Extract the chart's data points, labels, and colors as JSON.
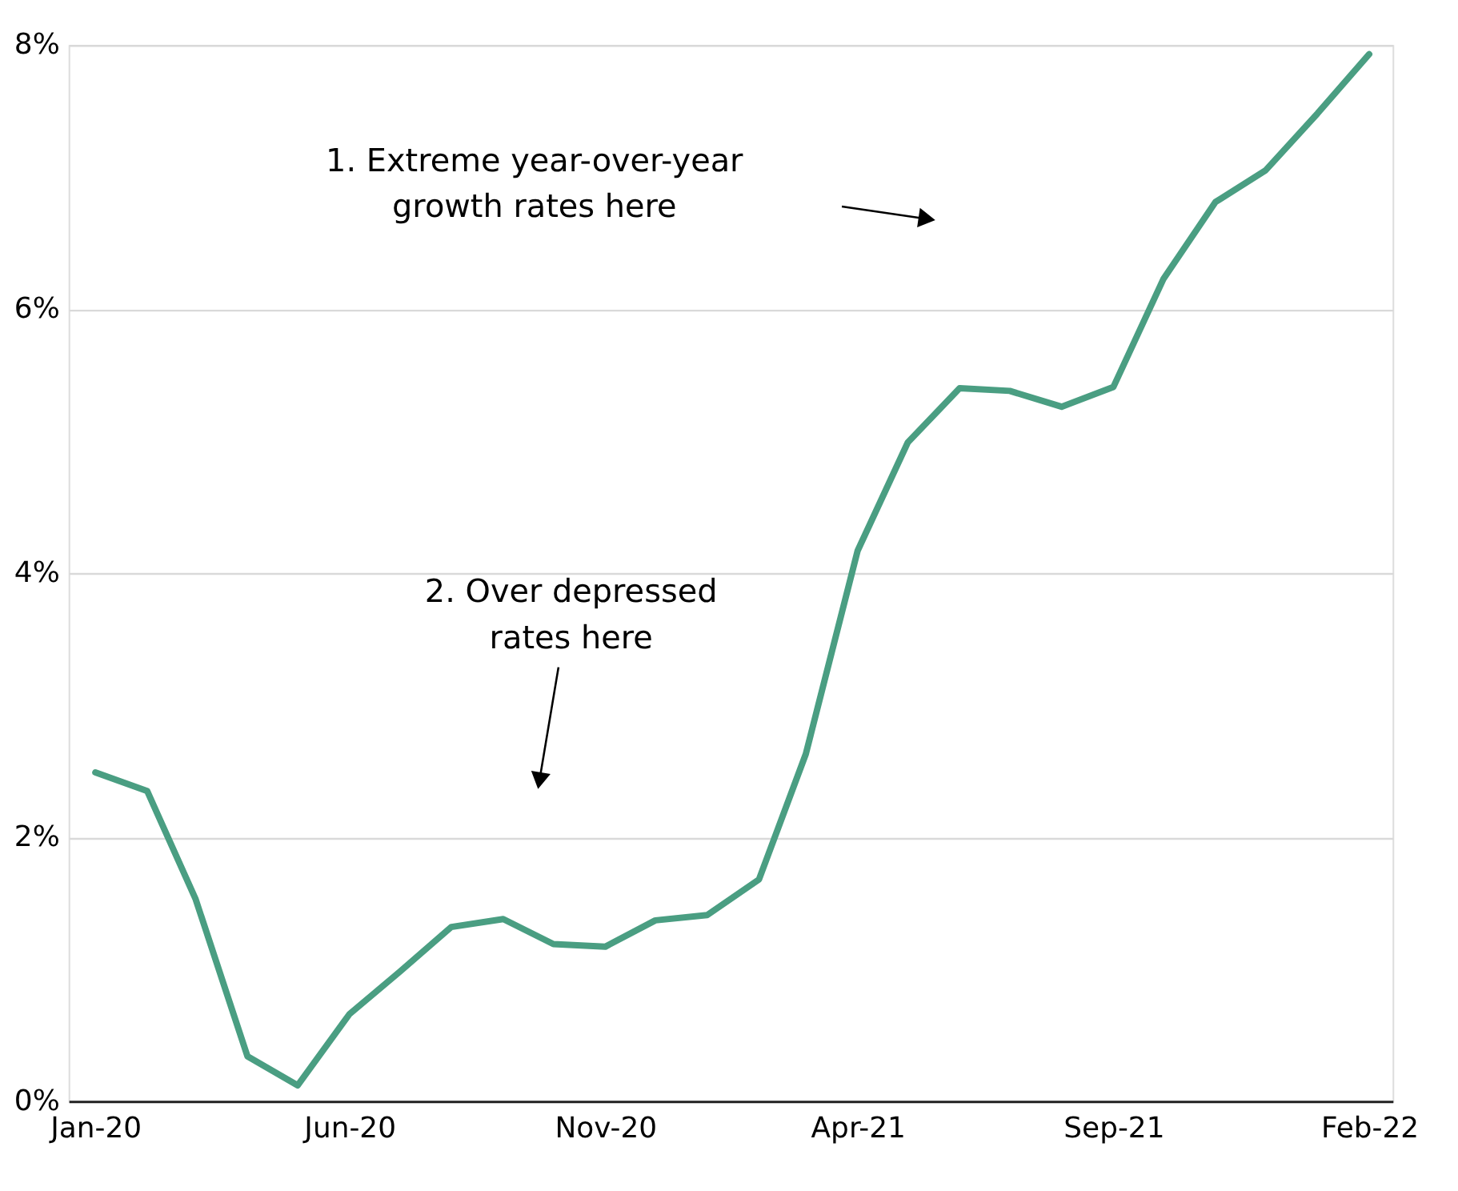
{
  "chart_data": {
    "type": "line",
    "x": [
      "2020-01",
      "2020-02",
      "2020-03",
      "2020-04",
      "2020-05",
      "2020-06",
      "2020-07",
      "2020-08",
      "2020-09",
      "2020-10",
      "2020-11",
      "2020-12",
      "2021-01",
      "2021-02",
      "2021-03",
      "2021-04",
      "2021-05",
      "2021-06",
      "2021-07",
      "2021-08",
      "2021-09",
      "2021-10",
      "2021-11",
      "2021-12",
      "2022-01",
      "2022-02"
    ],
    "series": [
      {
        "color": "#4a9e82",
        "values": [
          2.49,
          2.35,
          1.53,
          0.34,
          0.12,
          0.66,
          0.98,
          1.32,
          1.38,
          1.19,
          1.17,
          1.37,
          1.41,
          1.68,
          2.63,
          4.17,
          4.99,
          5.4,
          5.38,
          5.26,
          5.41,
          6.23,
          6.81,
          7.05,
          7.48,
          7.93
        ]
      }
    ],
    "xlim": [
      "2019-12-16",
      "2022-02-15"
    ],
    "xticks": [
      {
        "value": "2020-01",
        "label": "Jan-20"
      },
      {
        "value": "2020-06",
        "label": "Jun-20"
      },
      {
        "value": "2020-11",
        "label": "Nov-20"
      },
      {
        "value": "2021-04",
        "label": "Apr-21"
      },
      {
        "value": "2021-09",
        "label": "Sep-21"
      },
      {
        "value": "2022-02",
        "label": "Feb-22"
      }
    ],
    "ylim": [
      0,
      8
    ],
    "yticks": [
      {
        "value": 0,
        "label": "0%"
      },
      {
        "value": 2,
        "label": "2%"
      },
      {
        "value": 4,
        "label": "4%"
      },
      {
        "value": 6,
        "label": "6%"
      },
      {
        "value": 8,
        "label": "8%"
      }
    ],
    "grid": "y",
    "marker": "none",
    "line_style": "solid",
    "annotations": [
      "1. Extreme year-over-year\ngrowth rates here",
      "2. Over depressed\nrates here"
    ]
  }
}
